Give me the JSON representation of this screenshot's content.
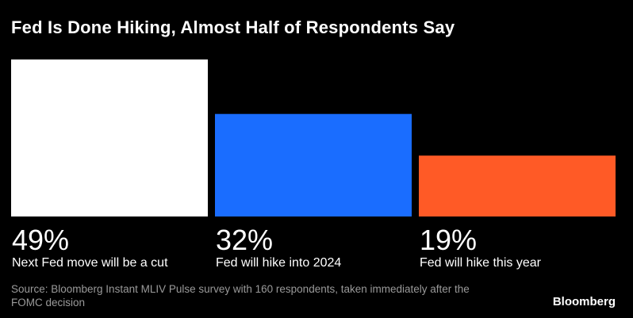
{
  "title": "Fed Is Done Hiking, Almost Half of Respondents Say",
  "source": "Source: Bloomberg Instant MLIV Pulse survey with 160 respondents, taken immediately after the FOMC decision",
  "brand": "Bloomberg",
  "chart_data": {
    "type": "bar",
    "title": "Fed Is Done Hiking, Almost Half of Respondents Say",
    "categories": [
      "Next Fed move will be a cut",
      "Fed will hike into 2024",
      "Fed will hike this year"
    ],
    "values": [
      49,
      32,
      19
    ],
    "value_labels": [
      "49%",
      "32%",
      "19%"
    ],
    "colors": [
      "#ffffff",
      "#1a6dff",
      "#ff5a26"
    ],
    "unit": "%",
    "xlabel": "",
    "ylabel": "",
    "ylim": [
      0,
      49
    ],
    "grid": false,
    "legend": "none"
  }
}
